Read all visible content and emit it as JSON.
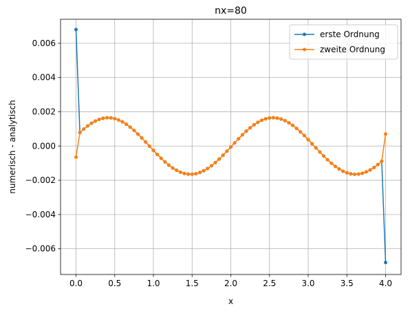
{
  "chart_data": {
    "type": "line",
    "title": "nx=80",
    "xlabel": "x",
    "ylabel": "numerisch - analytisch",
    "xlim": [
      -0.2,
      4.2
    ],
    "ylim": [
      -0.0075,
      0.0074
    ],
    "xticks": [
      0.0,
      0.5,
      1.0,
      1.5,
      2.0,
      2.5,
      3.0,
      3.5,
      4.0
    ],
    "xtick_labels": [
      "0.0",
      "0.5",
      "1.0",
      "1.5",
      "2.0",
      "2.5",
      "3.0",
      "3.5",
      "4.0"
    ],
    "yticks": [
      -0.006,
      -0.004,
      -0.002,
      0.0,
      0.002,
      0.004,
      0.006
    ],
    "ytick_labels": [
      "−0.006",
      "−0.004",
      "−0.002",
      "0.000",
      "0.002",
      "0.004",
      "0.006"
    ],
    "grid": true,
    "legend_position": "top-right",
    "series": [
      {
        "name": "erste Ordnung",
        "color": "#1f77b4"
      },
      {
        "name": "zweite Ordnung",
        "color": "#ff7f0e"
      }
    ],
    "x_range": [
      0,
      4
    ],
    "num_points": 81,
    "interior_curve": {
      "shape": "sinusoid",
      "amplitude": 0.00165,
      "period": 2.13,
      "trough_x": 1.48,
      "peak_x": 2.55
    },
    "endpoints": {
      "erste Ordnung": {
        "x0": 0.0068,
        "x_end": -0.0068
      },
      "zweite Ordnung": {
        "x0": -0.00065,
        "x_end": 0.0007
      }
    }
  }
}
